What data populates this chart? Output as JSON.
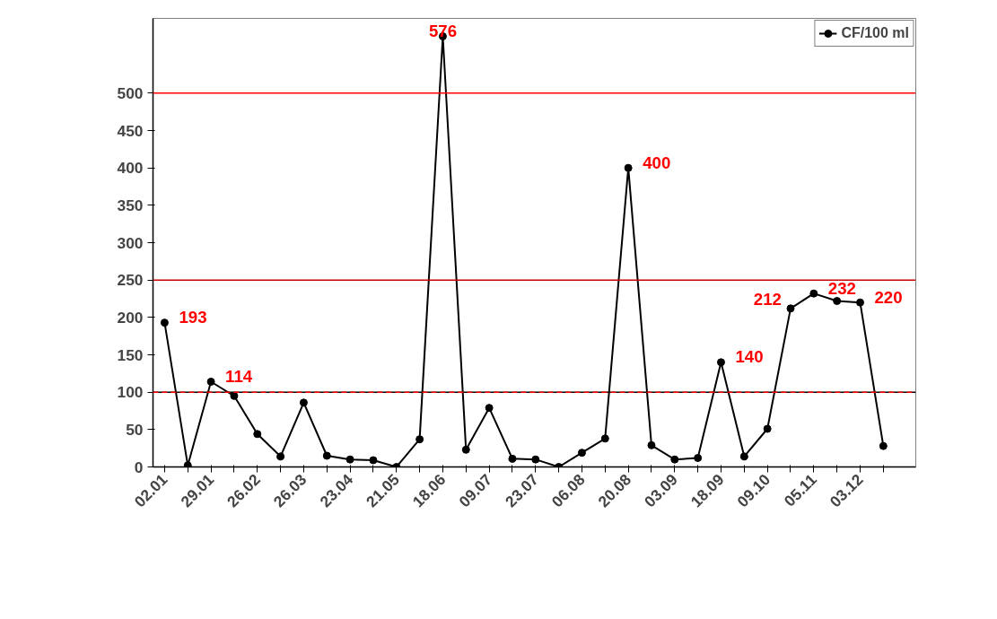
{
  "chart_data": {
    "type": "line",
    "categories": [
      "02.01",
      null,
      "29.01",
      null,
      "26.02",
      null,
      "26.03",
      null,
      "23.04",
      null,
      "21.05",
      null,
      "18.06",
      null,
      "09.07",
      null,
      "23.07",
      null,
      "06.08",
      null,
      "20.08",
      null,
      "03.09",
      null,
      "18.09",
      null,
      "09.10",
      null,
      "05.11",
      null,
      "03.12",
      null
    ],
    "series": [
      {
        "name": "CF/100 ml",
        "color": "#000000",
        "values": [
          193,
          2,
          114,
          95,
          44,
          14,
          86,
          15,
          10,
          9,
          0,
          37,
          576,
          23,
          79,
          11,
          10,
          0,
          19,
          38,
          400,
          29,
          10,
          12,
          140,
          14,
          51,
          212,
          232,
          222,
          220,
          28
        ],
        "value_labels": [
          "193",
          null,
          "114",
          null,
          null,
          null,
          null,
          null,
          null,
          null,
          null,
          null,
          "576",
          null,
          null,
          null,
          null,
          null,
          null,
          null,
          "400",
          null,
          null,
          null,
          "140",
          null,
          null,
          "212",
          "232",
          null,
          "220",
          null
        ]
      }
    ],
    "ylim": [
      0,
      600
    ],
    "yticks": [
      0,
      50,
      100,
      150,
      200,
      250,
      300,
      350,
      400,
      450,
      500
    ],
    "ref_lines": [
      {
        "axis": "y",
        "value": 500,
        "color": "#ff0000",
        "line_style": "solid"
      },
      {
        "axis": "y",
        "value": 250,
        "color": "#cc0000",
        "line_style": "solid"
      },
      {
        "axis": "y",
        "value": 100,
        "color": "#000000",
        "line_style": "solid"
      },
      {
        "axis": "y",
        "value": 100,
        "color": "#ff0000",
        "line_style": "dashed"
      }
    ],
    "marker": "circle",
    "line_style": "solid",
    "grid": false,
    "legend": "top right"
  }
}
